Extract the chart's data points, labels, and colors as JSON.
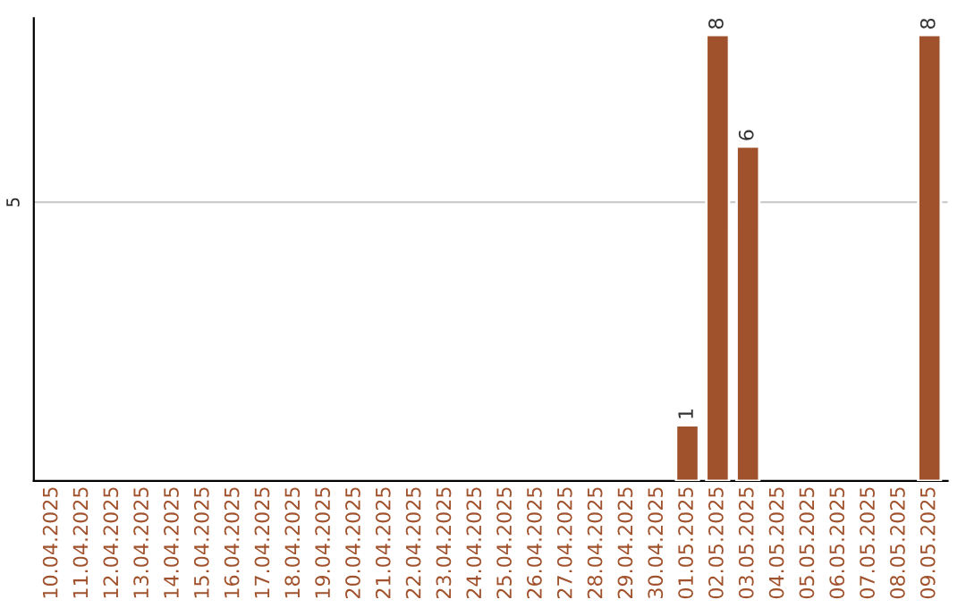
{
  "chart_data": {
    "type": "bar",
    "categories": [
      "10.04.2025",
      "11.04.2025",
      "12.04.2025",
      "13.04.2025",
      "14.04.2025",
      "15.04.2025",
      "16.04.2025",
      "17.04.2025",
      "18.04.2025",
      "19.04.2025",
      "20.04.2025",
      "21.04.2025",
      "22.04.2025",
      "23.04.2025",
      "24.04.2025",
      "25.04.2025",
      "26.04.2025",
      "27.04.2025",
      "28.04.2025",
      "29.04.2025",
      "30.04.2025",
      "01.05.2025",
      "02.05.2025",
      "03.05.2025",
      "04.05.2025",
      "05.05.2025",
      "06.05.2025",
      "07.05.2025",
      "08.05.2025",
      "09.05.2025"
    ],
    "values": [
      null,
      null,
      null,
      null,
      null,
      null,
      null,
      null,
      null,
      null,
      null,
      null,
      null,
      null,
      null,
      null,
      null,
      null,
      null,
      null,
      null,
      1,
      8,
      6,
      null,
      null,
      null,
      null,
      null,
      8
    ],
    "data_labels": true,
    "color": "#a0522d",
    "ylim": [
      0,
      8.3
    ],
    "ref_lines": [
      {
        "axis": "y",
        "value": 5,
        "label": "5",
        "color": "#cccccc"
      }
    ]
  }
}
